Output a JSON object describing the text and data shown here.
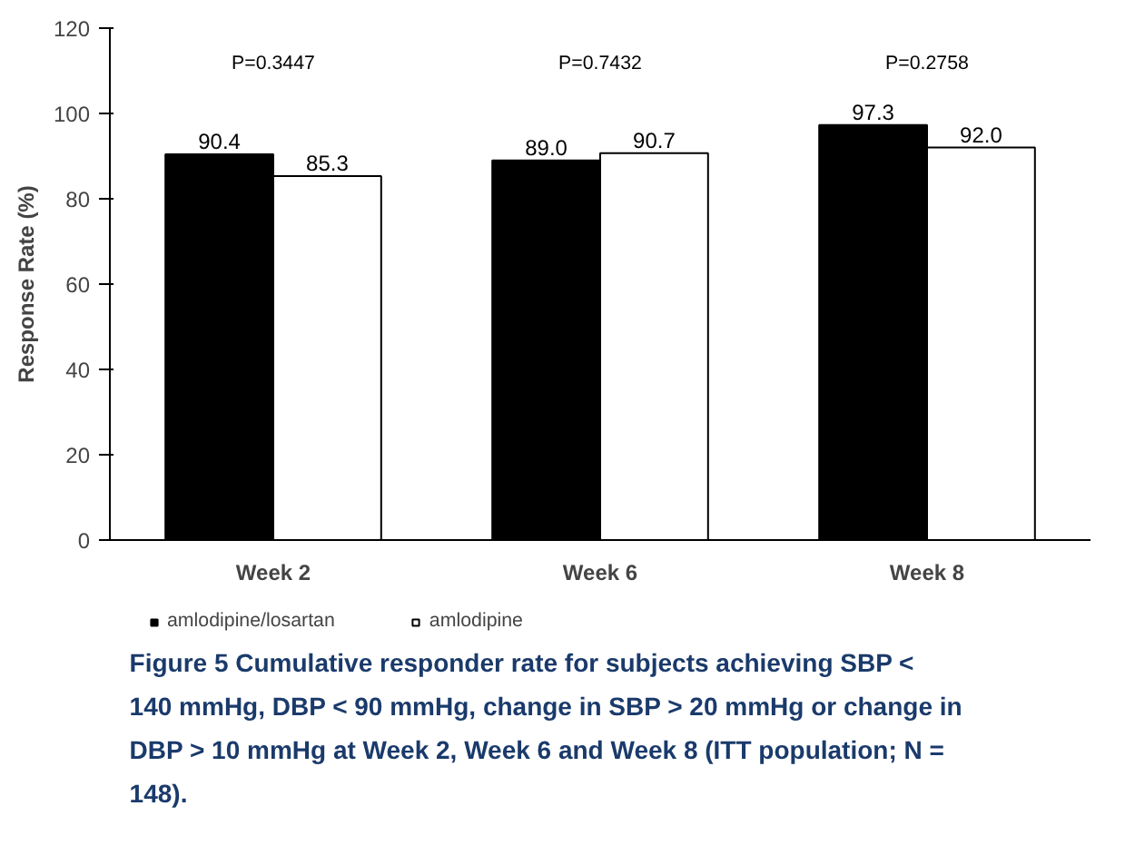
{
  "chart_data": {
    "type": "bar",
    "categories": [
      "Week 2",
      "Week 6",
      "Week 8"
    ],
    "ylabel": "Response Rate (%)",
    "series": [
      {
        "name": "amlodipine/losartan",
        "color": "#000000",
        "values": [
          90.4,
          89,
          97.3
        ],
        "value_labels": [
          "90.4",
          "89.0",
          "97.3"
        ]
      },
      {
        "name": "amlodipine",
        "color": "#ffffff",
        "values": [
          85.3,
          90.7,
          92
        ],
        "value_labels": [
          "85.3",
          "90.7",
          "92.0"
        ]
      }
    ],
    "ylim": [
      0,
      120
    ],
    "yticks": [
      0,
      20,
      40,
      60,
      80,
      100,
      120
    ],
    "grid": false,
    "legend": "bottom",
    "annotations": [
      "P=0.3447",
      "P=0.7432",
      "P=0.2758",
      "Figure 5 Cumulative responder rate for subjects achieving SBP < 140 mmHg, DBP < 90 mmHg, change in SBP > 20 mmHg or change in DBP > 10 mmHg at Week 2, Week 6 and Week 8 (ITT population; N = 148)."
    ]
  }
}
